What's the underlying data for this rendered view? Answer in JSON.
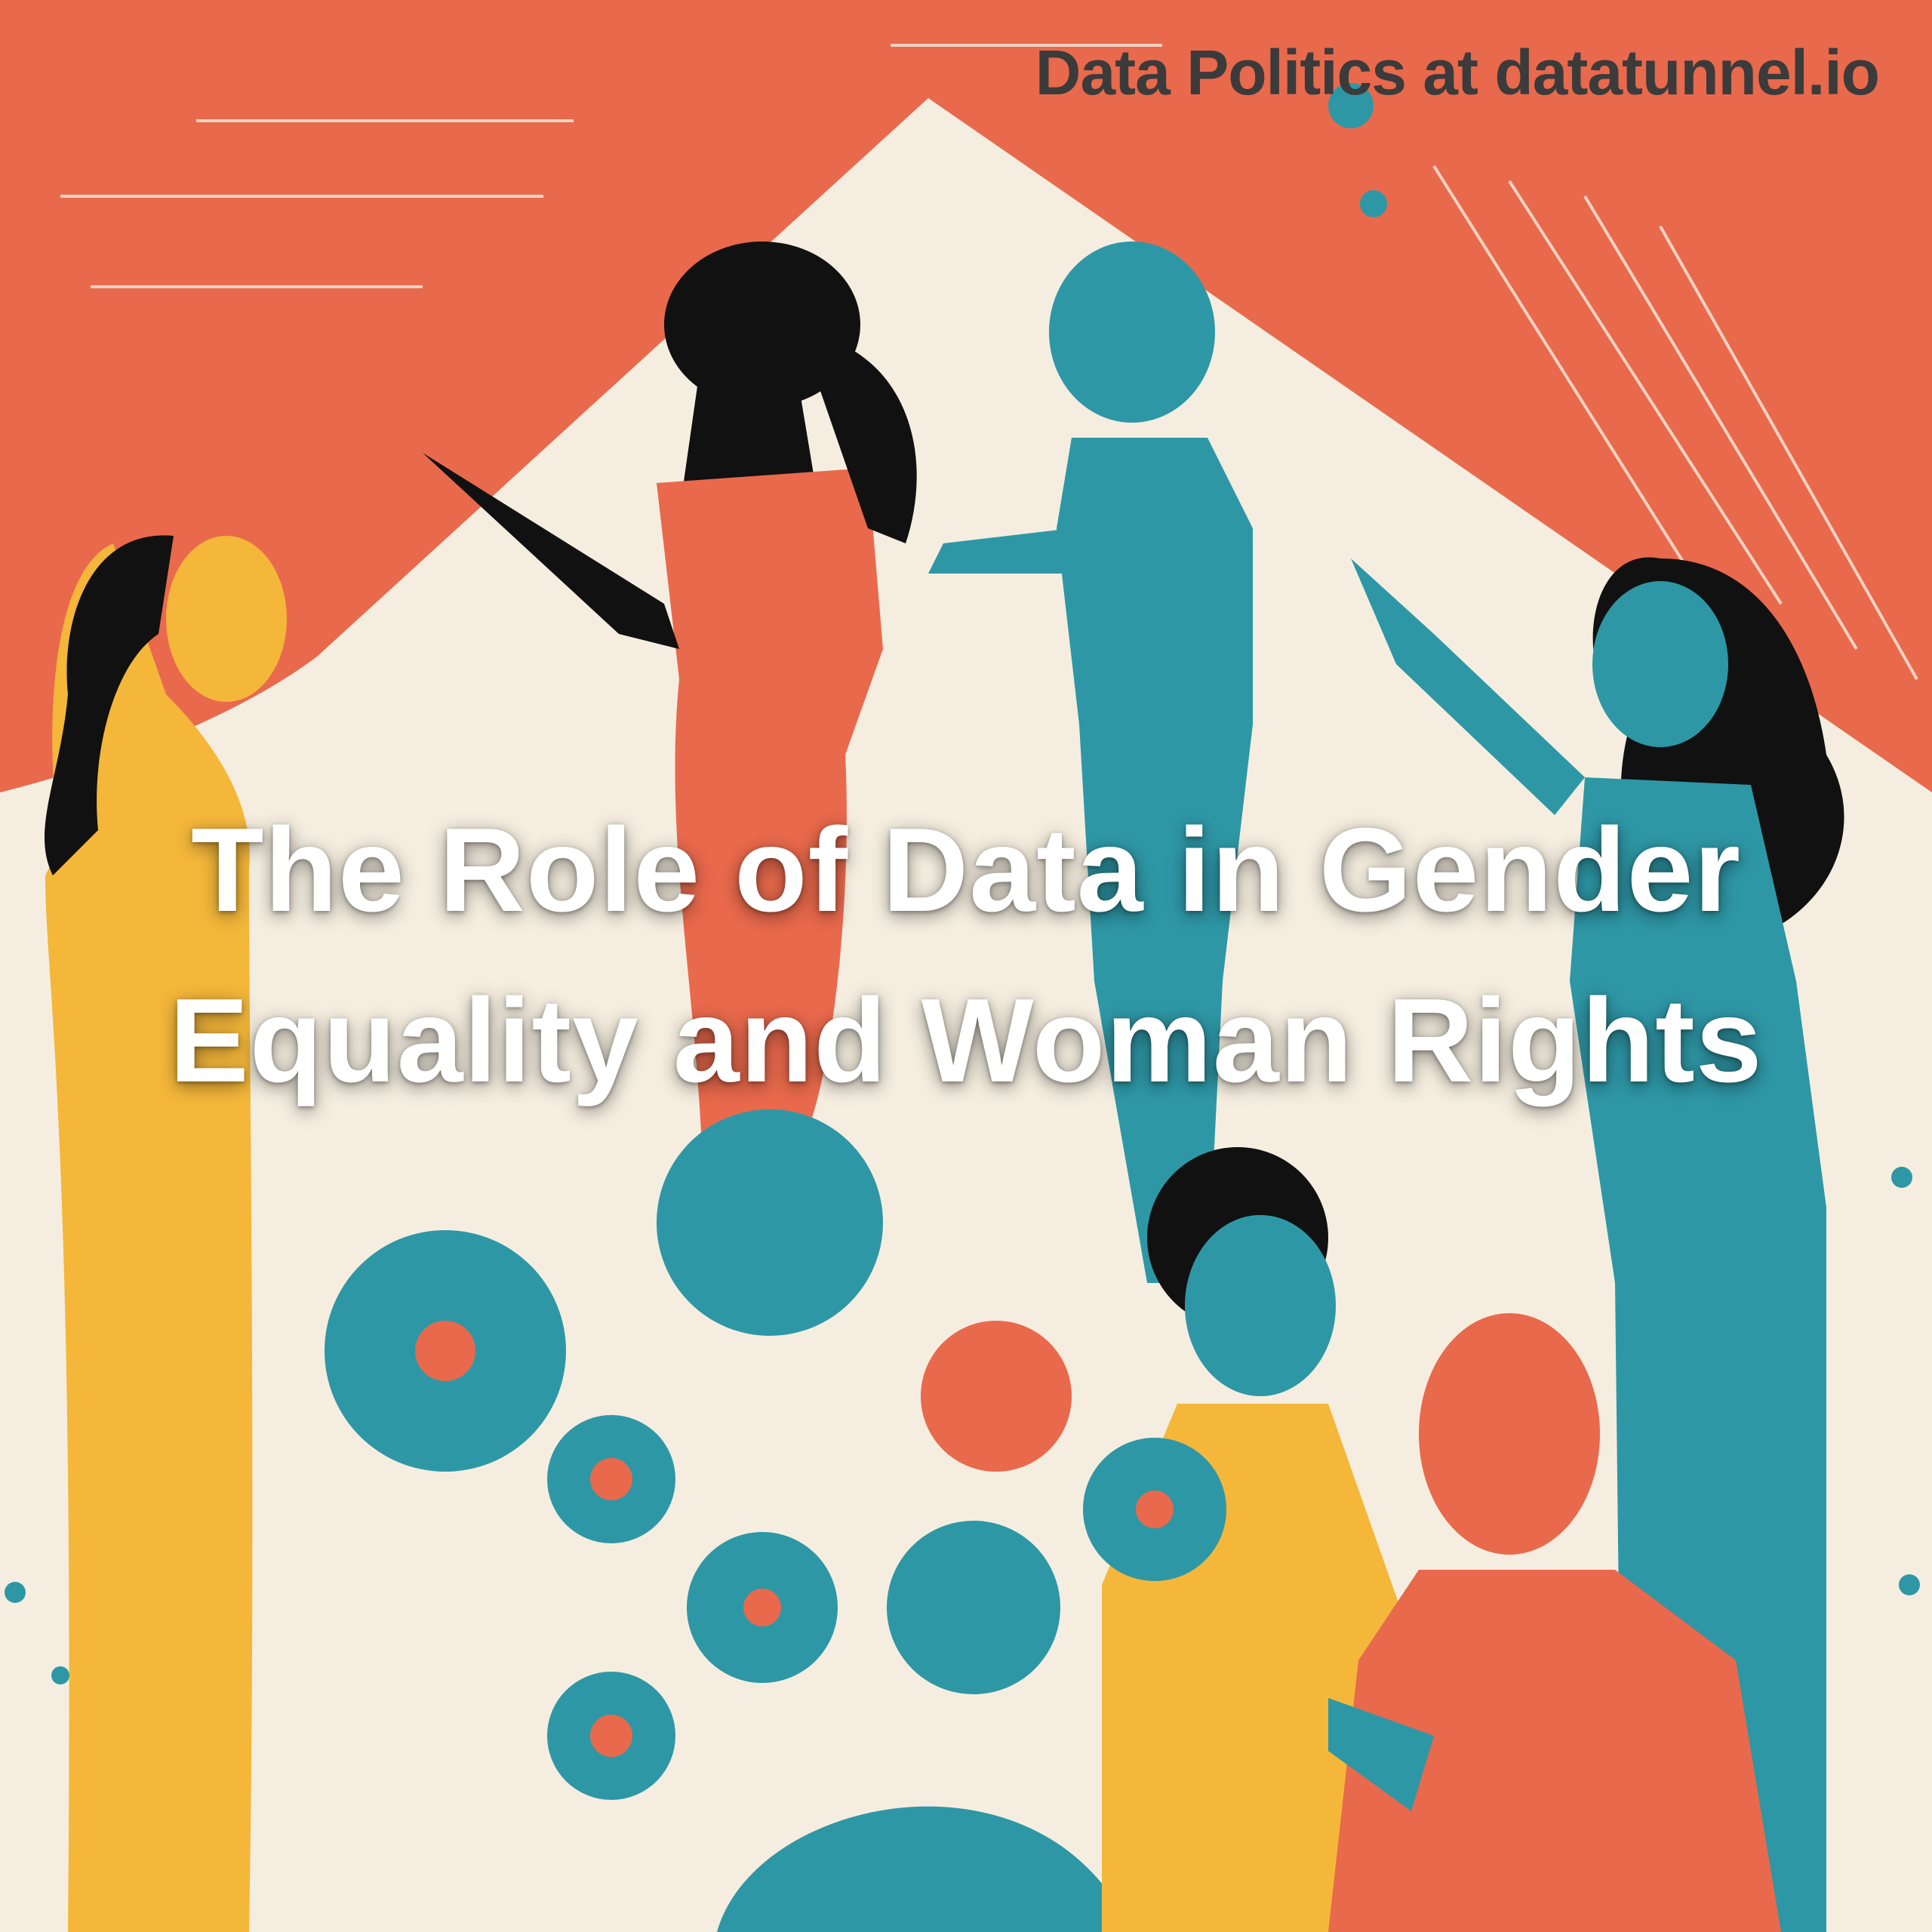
{
  "header": {
    "brand": "Data Politics at datatunnel.io"
  },
  "hero": {
    "title_line1": "The Role of Data in Gender",
    "title_line2": "Equality and Woman Rights"
  },
  "colors": {
    "background_orange": "#E9694C",
    "cream": "#F5EEE0",
    "teal": "#2E97A6",
    "yellow": "#F4B73A",
    "black": "#111111",
    "title_text": "#FFFFFF",
    "brand_text": "#3B3B3B"
  }
}
